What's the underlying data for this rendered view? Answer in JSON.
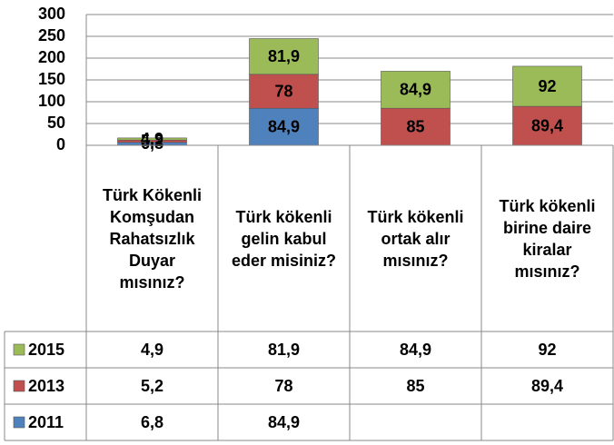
{
  "chart_data": {
    "type": "stacked_bar",
    "categories": [
      "Türk Kökenli Komşudan Rahatsızlık Duyar mısınız?",
      "Türk kökenli gelin kabul eder misiniz?",
      "Türk kökenli ortak alır mısınız?",
      "Türk kökenli birine daire kiralar mısınız?"
    ],
    "series": [
      {
        "name": "2011",
        "color": "#4f81bd",
        "values": [
          6.8,
          84.9,
          null,
          null
        ],
        "value_labels": [
          "6,8",
          "84,9",
          null,
          null
        ]
      },
      {
        "name": "2013",
        "color": "#c0504d",
        "values": [
          5.2,
          78,
          85,
          89.4
        ],
        "value_labels": [
          "5,2",
          "78",
          "85",
          "89,4"
        ]
      },
      {
        "name": "2015",
        "color": "#9bbb59",
        "values": [
          4.9,
          81.9,
          84.9,
          92
        ],
        "value_labels": [
          "4,9",
          "81,9",
          "84,9",
          "92"
        ]
      }
    ],
    "ylim": [
      0,
      300
    ],
    "yticks": [
      0,
      50,
      100,
      150,
      200,
      250,
      300
    ],
    "grid": true
  }
}
